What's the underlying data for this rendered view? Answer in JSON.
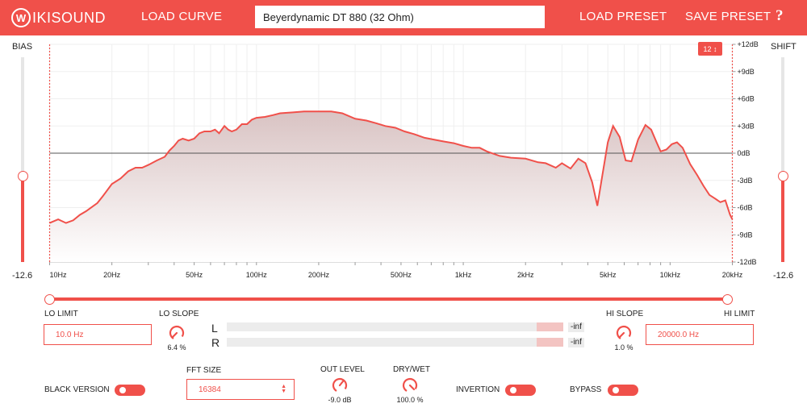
{
  "header": {
    "logo_letter": "W",
    "logo_text": "IKISOUND",
    "load_curve": "LOAD CURVE",
    "headphone": "Beyerdynamic DT 880 (32 Ohm)",
    "load_preset": "LOAD PRESET",
    "save_preset": "SAVE PRESET",
    "help": "?"
  },
  "bias": {
    "label": "BIAS",
    "value": "-12.6",
    "level": 0.42
  },
  "shift": {
    "label": "SHIFT",
    "value": "-12.6",
    "level": 0.42
  },
  "graph": {
    "fft_badge": "12 ↕",
    "db_ticks": [
      "+12dB",
      "+9dB",
      "+6dB",
      "+3dB",
      "0dB",
      "-3dB",
      "-6dB",
      "-9dB",
      "-12dB"
    ],
    "freq_ticks": [
      {
        "hz": 10,
        "label": "10Hz"
      },
      {
        "hz": 20,
        "label": "20Hz"
      },
      {
        "hz": 50,
        "label": "50Hz"
      },
      {
        "hz": 100,
        "label": "100Hz"
      },
      {
        "hz": 200,
        "label": "200Hz"
      },
      {
        "hz": 500,
        "label": "500Hz"
      },
      {
        "hz": 1000,
        "label": "1kHz"
      },
      {
        "hz": 2000,
        "label": "2kHz"
      },
      {
        "hz": 5000,
        "label": "5kHz"
      },
      {
        "hz": 10000,
        "label": "10kHz"
      },
      {
        "hz": 20000,
        "label": "20kHz"
      }
    ],
    "curve": [
      [
        10,
        -7.7
      ],
      [
        11,
        -7.3
      ],
      [
        12,
        -7.7
      ],
      [
        13,
        -7.4
      ],
      [
        14,
        -6.8
      ],
      [
        15,
        -6.4
      ],
      [
        17,
        -5.5
      ],
      [
        18,
        -4.8
      ],
      [
        20,
        -3.4
      ],
      [
        22,
        -2.8
      ],
      [
        24,
        -2.0
      ],
      [
        26,
        -1.6
      ],
      [
        28,
        -1.6
      ],
      [
        30,
        -1.3
      ],
      [
        33,
        -0.8
      ],
      [
        36,
        -0.4
      ],
      [
        38,
        0.3
      ],
      [
        40,
        0.8
      ],
      [
        42,
        1.4
      ],
      [
        44,
        1.6
      ],
      [
        47,
        1.4
      ],
      [
        50,
        1.6
      ],
      [
        53,
        2.2
      ],
      [
        56,
        2.4
      ],
      [
        60,
        2.4
      ],
      [
        63,
        2.6
      ],
      [
        66,
        2.2
      ],
      [
        70,
        3.0
      ],
      [
        73,
        2.6
      ],
      [
        76,
        2.4
      ],
      [
        80,
        2.6
      ],
      [
        85,
        3.2
      ],
      [
        90,
        3.2
      ],
      [
        95,
        3.7
      ],
      [
        100,
        3.9
      ],
      [
        110,
        4.0
      ],
      [
        120,
        4.2
      ],
      [
        130,
        4.4
      ],
      [
        150,
        4.5
      ],
      [
        170,
        4.6
      ],
      [
        200,
        4.6
      ],
      [
        230,
        4.6
      ],
      [
        260,
        4.4
      ],
      [
        300,
        3.8
      ],
      [
        340,
        3.6
      ],
      [
        380,
        3.3
      ],
      [
        420,
        3.0
      ],
      [
        470,
        2.8
      ],
      [
        520,
        2.4
      ],
      [
        580,
        2.1
      ],
      [
        650,
        1.7
      ],
      [
        720,
        1.5
      ],
      [
        800,
        1.3
      ],
      [
        900,
        1.1
      ],
      [
        1000,
        0.8
      ],
      [
        1100,
        0.6
      ],
      [
        1200,
        0.6
      ],
      [
        1300,
        0.2
      ],
      [
        1500,
        -0.3
      ],
      [
        1700,
        -0.5
      ],
      [
        2000,
        -0.6
      ],
      [
        2300,
        -1.0
      ],
      [
        2500,
        -1.1
      ],
      [
        2800,
        -1.6
      ],
      [
        3000,
        -1.1
      ],
      [
        3300,
        -1.7
      ],
      [
        3600,
        -0.6
      ],
      [
        3900,
        -1.1
      ],
      [
        4200,
        -3.2
      ],
      [
        4450,
        -5.8
      ],
      [
        4700,
        -2.5
      ],
      [
        5000,
        1.2
      ],
      [
        5300,
        3.0
      ],
      [
        5700,
        1.8
      ],
      [
        6100,
        -0.8
      ],
      [
        6500,
        -0.9
      ],
      [
        7000,
        1.5
      ],
      [
        7600,
        3.1
      ],
      [
        8100,
        2.6
      ],
      [
        8600,
        1.2
      ],
      [
        9000,
        0.2
      ],
      [
        9600,
        0.4
      ],
      [
        10200,
        1.0
      ],
      [
        10800,
        1.2
      ],
      [
        11500,
        0.6
      ],
      [
        12500,
        -1.2
      ],
      [
        13500,
        -2.4
      ],
      [
        14500,
        -3.6
      ],
      [
        15500,
        -4.6
      ],
      [
        16500,
        -5.0
      ],
      [
        17500,
        -5.4
      ],
      [
        18500,
        -5.2
      ],
      [
        19500,
        -6.8
      ],
      [
        20000,
        -7.3
      ]
    ]
  },
  "lo_limit": {
    "label": "LO LIMIT",
    "value": "10.0 Hz"
  },
  "lo_slope": {
    "label": "LO SLOPE",
    "value": "6.4 %"
  },
  "hi_slope": {
    "label": "HI SLOPE",
    "value": "1.0 %"
  },
  "hi_limit": {
    "label": "HI LIMIT",
    "value": "20000.0 Hz"
  },
  "meters": {
    "left_label": "L",
    "right_label": "R",
    "left_value": "-inf",
    "right_value": "-inf"
  },
  "black_version": {
    "label": "BLACK VERSION"
  },
  "fft_size": {
    "label": "FFT SIZE",
    "value": "16384"
  },
  "out_level": {
    "label": "OUT LEVEL",
    "value": "-9.0 dB"
  },
  "dry_wet": {
    "label": "DRY/WET",
    "value": "100.0 %"
  },
  "invertion": {
    "label": "INVERTION"
  },
  "bypass": {
    "label": "BYPASS"
  },
  "colors": {
    "accent": "#f0504a",
    "fill": "#e3d4d4"
  }
}
